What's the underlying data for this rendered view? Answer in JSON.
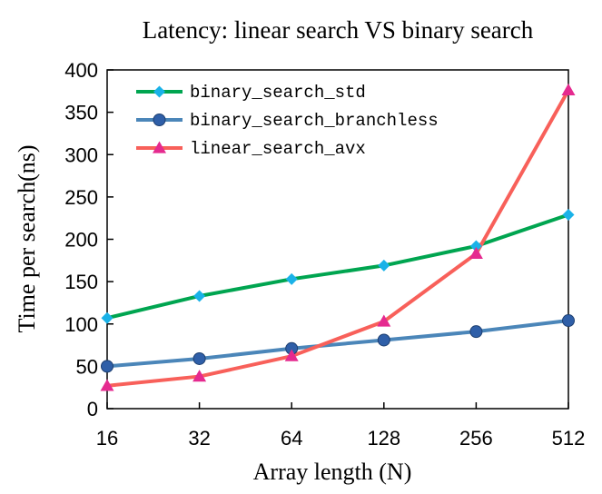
{
  "chart_data": {
    "type": "line",
    "title": "Latency: linear search VS binary search",
    "xlabel": "Array length (N)",
    "ylabel": "Time per search(ns)",
    "categories": [
      "16",
      "32",
      "64",
      "128",
      "256",
      "512"
    ],
    "ylim": [
      0,
      400
    ],
    "yticks": [
      0,
      50,
      100,
      150,
      200,
      250,
      300,
      350,
      400
    ],
    "grid": false,
    "legend_position": "top-left",
    "series": [
      {
        "name": "binary_search_std",
        "values": [
          107,
          133,
          153,
          169,
          192,
          229
        ],
        "color": "#00a550",
        "marker_color": "#1ab2e8",
        "marker": "diamond"
      },
      {
        "name": "binary_search_branchless",
        "values": [
          50,
          59,
          71,
          81,
          91,
          104
        ],
        "color": "#4b86b9",
        "marker_color": "#2f5fa8",
        "marker": "circle"
      },
      {
        "name": "linear_search_avx",
        "values": [
          27,
          38,
          62,
          103,
          183,
          376
        ],
        "color": "#f8605a",
        "marker_color": "#e52a8f",
        "marker": "triangle"
      }
    ]
  }
}
